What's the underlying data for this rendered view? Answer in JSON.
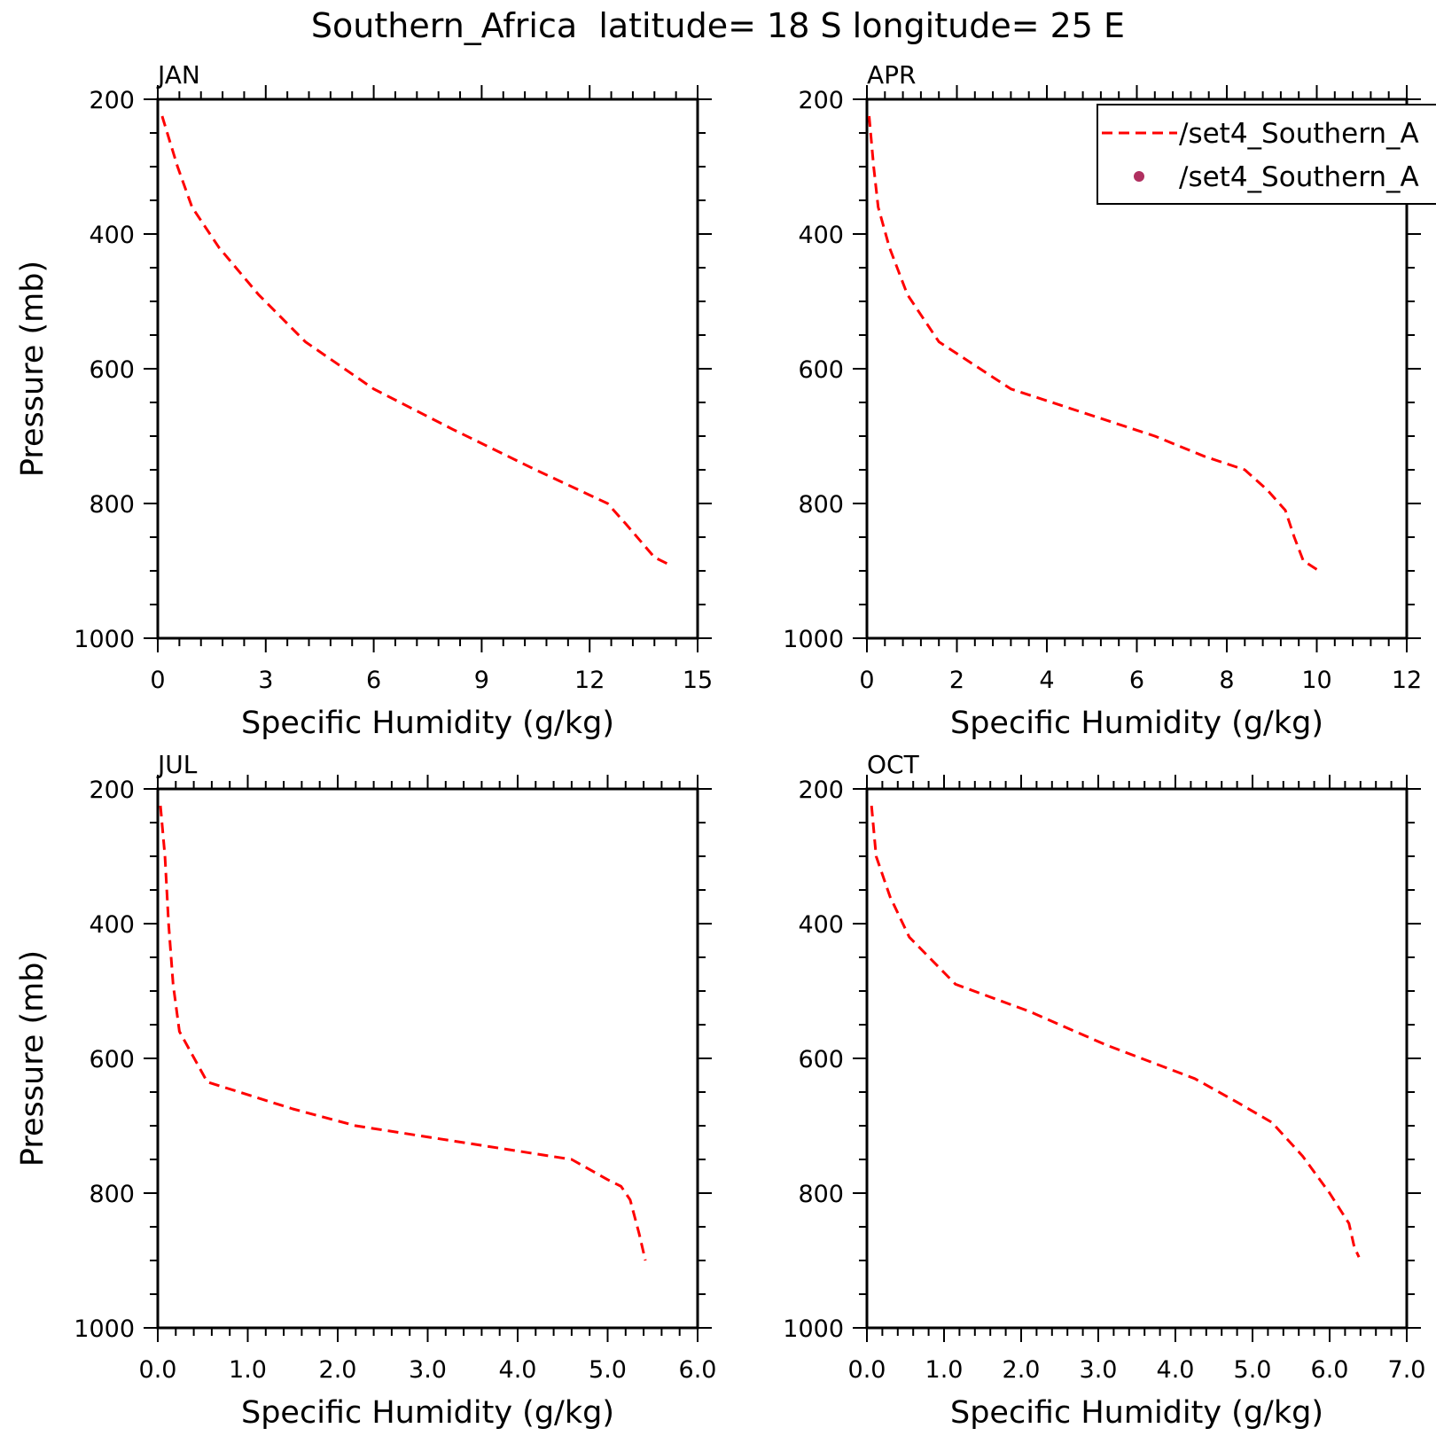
{
  "figure": {
    "title": "Southern_Africa  latitude= 18 S longitude= 25 E",
    "line_color": "#ff0000",
    "obs_marker_color": "#b03060"
  },
  "legend": {
    "placement": "top-right of APR panel (clipped at figure edge)",
    "entries": [
      {
        "label": "/set4_Southern_A",
        "style": "dashed-line",
        "color": "#ff0000"
      },
      {
        "label": "/set4_Southern_A",
        "style": "dot",
        "color": "#b03060"
      }
    ]
  },
  "chart_data": [
    {
      "type": "line",
      "panel_label": "JAN",
      "xlabel": "Specific Humidity (g/kg)",
      "ylabel": "Pressure (mb)",
      "xlim": [
        0,
        15
      ],
      "ylim": [
        1000,
        200
      ],
      "y_inverted": true,
      "xticks": [
        0,
        3,
        6,
        9,
        12,
        15
      ],
      "xtick_labels": [
        "0",
        "3",
        "6",
        "9",
        "12",
        "15"
      ],
      "yticks": [
        200,
        400,
        600,
        800,
        1000
      ],
      "ytick_labels": [
        "200",
        "400",
        "600",
        "800",
        "1000"
      ],
      "series": [
        {
          "style": "dashed",
          "color": "#ff0000",
          "x": [
            0.12,
            0.55,
            0.95,
            1.7,
            2.8,
            4.1,
            6.0,
            8.2,
            10.5,
            12.5,
            13.0,
            13.8,
            14.3
          ],
          "y": [
            225,
            300,
            360,
            420,
            490,
            560,
            630,
            690,
            750,
            800,
            830,
            880,
            893
          ]
        }
      ]
    },
    {
      "type": "line",
      "panel_label": "APR",
      "xlabel": "Specific Humidity (g/kg)",
      "ylabel": "",
      "xlim": [
        0,
        12
      ],
      "ylim": [
        1000,
        200
      ],
      "y_inverted": true,
      "xticks": [
        0,
        2,
        4,
        6,
        8,
        10,
        12
      ],
      "xtick_labels": [
        "0",
        "2",
        "4",
        "6",
        "8",
        "10",
        "12"
      ],
      "yticks": [
        200,
        400,
        600,
        800,
        1000
      ],
      "ytick_labels": [
        "200",
        "400",
        "600",
        "800",
        "1000"
      ],
      "series": [
        {
          "style": "dashed",
          "color": "#ff0000",
          "x": [
            0.05,
            0.15,
            0.25,
            0.5,
            0.9,
            1.6,
            3.2,
            4.8,
            6.4,
            7.5,
            8.4,
            8.9,
            9.3,
            9.5,
            9.7,
            10.05
          ],
          "y": [
            225,
            300,
            360,
            420,
            490,
            560,
            630,
            665,
            700,
            730,
            750,
            780,
            810,
            850,
            885,
            900
          ]
        }
      ]
    },
    {
      "type": "line",
      "panel_label": "JUL",
      "xlabel": "Specific Humidity (g/kg)",
      "ylabel": "Pressure (mb)",
      "xlim": [
        0.0,
        6.0
      ],
      "ylim": [
        1000,
        200
      ],
      "y_inverted": true,
      "xticks": [
        0,
        1,
        2,
        3,
        4,
        5,
        6
      ],
      "xtick_labels": [
        "0.0",
        "1.0",
        "2.0",
        "3.0",
        "4.0",
        "5.0",
        "6.0"
      ],
      "yticks": [
        200,
        400,
        600,
        800,
        1000
      ],
      "ytick_labels": [
        "200",
        "400",
        "600",
        "800",
        "1000"
      ],
      "series": [
        {
          "style": "dashed",
          "color": "#ff0000",
          "x": [
            0.03,
            0.08,
            0.12,
            0.17,
            0.24,
            0.55,
            1.5,
            2.2,
            3.4,
            4.6,
            5.0,
            5.15,
            5.25,
            5.35,
            5.42
          ],
          "y": [
            225,
            300,
            400,
            490,
            560,
            635,
            675,
            700,
            725,
            750,
            780,
            790,
            810,
            860,
            900
          ]
        }
      ]
    },
    {
      "type": "line",
      "panel_label": "OCT",
      "xlabel": "Specific Humidity (g/kg)",
      "ylabel": "",
      "xlim": [
        0.0,
        7.0
      ],
      "ylim": [
        1000,
        200
      ],
      "y_inverted": true,
      "xticks": [
        0,
        1,
        2,
        3,
        4,
        5,
        6,
        7
      ],
      "xtick_labels": [
        "0.0",
        "1.0",
        "2.0",
        "3.0",
        "4.0",
        "5.0",
        "6.0",
        "7.0"
      ],
      "yticks": [
        200,
        400,
        600,
        800,
        1000
      ],
      "ytick_labels": [
        "200",
        "400",
        "600",
        "800",
        "1000"
      ],
      "series": [
        {
          "style": "dashed",
          "color": "#ff0000",
          "x": [
            0.06,
            0.12,
            0.3,
            0.55,
            1.15,
            2.1,
            3.1,
            4.25,
            4.8,
            5.25,
            5.65,
            6.0,
            6.25,
            6.32,
            6.38
          ],
          "y": [
            225,
            300,
            360,
            420,
            490,
            530,
            580,
            630,
            665,
            695,
            745,
            800,
            845,
            880,
            895
          ]
        }
      ]
    }
  ]
}
